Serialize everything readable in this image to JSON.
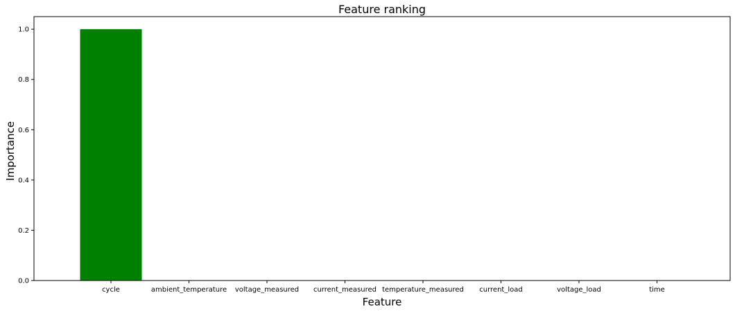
{
  "chart_data": {
    "type": "bar",
    "title": "Feature ranking",
    "xlabel": "Feature",
    "ylabel": "Importance",
    "categories": [
      "cycle",
      "ambient_temperature",
      "voltage_measured",
      "current_measured",
      "temperature_measured",
      "current_load",
      "voltage_load",
      "time"
    ],
    "values": [
      1.0,
      0.0,
      0.0,
      0.0,
      0.0,
      0.0,
      0.0,
      0.0
    ],
    "ylim": [
      0,
      1.05
    ],
    "yticks": [
      "0.0",
      "0.2",
      "0.4",
      "0.6",
      "0.8",
      "1.0"
    ],
    "bar_color": "#008000",
    "grid": false,
    "legend": "none"
  }
}
